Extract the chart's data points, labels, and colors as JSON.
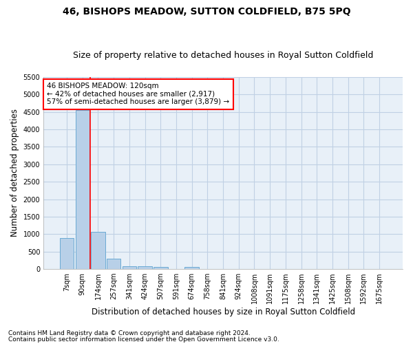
{
  "title": "46, BISHOPS MEADOW, SUTTON COLDFIELD, B75 5PQ",
  "subtitle": "Size of property relative to detached houses in Royal Sutton Coldfield",
  "xlabel": "Distribution of detached houses by size in Royal Sutton Coldfield",
  "ylabel": "Number of detached properties",
  "footnote1": "Contains HM Land Registry data © Crown copyright and database right 2024.",
  "footnote2": "Contains public sector information licensed under the Open Government Licence v3.0.",
  "bar_labels": [
    "7sqm",
    "90sqm",
    "174sqm",
    "257sqm",
    "341sqm",
    "424sqm",
    "507sqm",
    "591sqm",
    "674sqm",
    "758sqm",
    "841sqm",
    "924sqm",
    "1008sqm",
    "1091sqm",
    "1175sqm",
    "1258sqm",
    "1341sqm",
    "1425sqm",
    "1508sqm",
    "1592sqm",
    "1675sqm"
  ],
  "bar_values": [
    880,
    4560,
    1060,
    290,
    85,
    75,
    55,
    0,
    55,
    0,
    0,
    0,
    0,
    0,
    0,
    0,
    0,
    0,
    0,
    0,
    0
  ],
  "bar_color": "#b8d0e8",
  "bar_edge_color": "#6aaad4",
  "property_line_x": 1.5,
  "annotation_text": "46 BISHOPS MEADOW: 120sqm\n← 42% of detached houses are smaller (2,917)\n57% of semi-detached houses are larger (3,879) →",
  "ylim": [
    0,
    5500
  ],
  "yticks": [
    0,
    500,
    1000,
    1500,
    2000,
    2500,
    3000,
    3500,
    4000,
    4500,
    5000,
    5500
  ],
  "grid_color": "#c0d0e4",
  "background_color": "#e8f0f8",
  "title_fontsize": 10,
  "subtitle_fontsize": 9,
  "tick_fontsize": 7,
  "label_fontsize": 8.5,
  "annotation_fontsize": 7.5,
  "footnote_fontsize": 6.5
}
